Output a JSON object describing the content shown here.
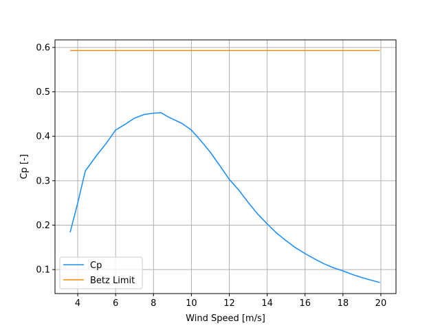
{
  "chart_data": {
    "type": "line",
    "title": "",
    "xlabel": "Wind Speed [m/s]",
    "ylabel": "Cp [-]",
    "xlim": [
      2.8,
      20.8
    ],
    "ylim": [
      0.046,
      0.617
    ],
    "xticks": [
      4,
      6,
      8,
      10,
      12,
      14,
      16,
      18,
      20
    ],
    "xtick_labels": [
      "4",
      "6",
      "8",
      "10",
      "12",
      "14",
      "16",
      "18",
      "20"
    ],
    "yticks": [
      0.1,
      0.2,
      0.3,
      0.4,
      0.5,
      0.6
    ],
    "ytick_labels": [
      "0.1",
      "0.2",
      "0.3",
      "0.4",
      "0.5",
      "0.6"
    ],
    "grid": true,
    "legend_position": "lower-left",
    "series": [
      {
        "name": "Cp",
        "color": "#1E90FF",
        "x": [
          3.6,
          4.0,
          4.4,
          5.0,
          5.5,
          6.0,
          6.5,
          7.0,
          7.5,
          8.0,
          8.4,
          8.8,
          9.2,
          9.5,
          10.0,
          10.5,
          11.0,
          11.5,
          12.0,
          12.5,
          13.0,
          13.5,
          14.0,
          14.5,
          15.0,
          15.5,
          16.0,
          16.5,
          17.0,
          17.5,
          18.0,
          18.5,
          19.0,
          19.5,
          19.95
        ],
        "y": [
          0.184,
          0.25,
          0.322,
          0.357,
          0.384,
          0.414,
          0.427,
          0.441,
          0.449,
          0.452,
          0.453,
          0.443,
          0.435,
          0.429,
          0.414,
          0.39,
          0.364,
          0.334,
          0.303,
          0.279,
          0.251,
          0.225,
          0.203,
          0.182,
          0.165,
          0.149,
          0.136,
          0.124,
          0.113,
          0.104,
          0.097,
          0.089,
          0.082,
          0.076,
          0.071
        ]
      },
      {
        "name": "Betz Limit",
        "color": "#FF8C00",
        "x": [
          3.6,
          19.95
        ],
        "y": [
          0.593,
          0.593
        ]
      }
    ]
  }
}
